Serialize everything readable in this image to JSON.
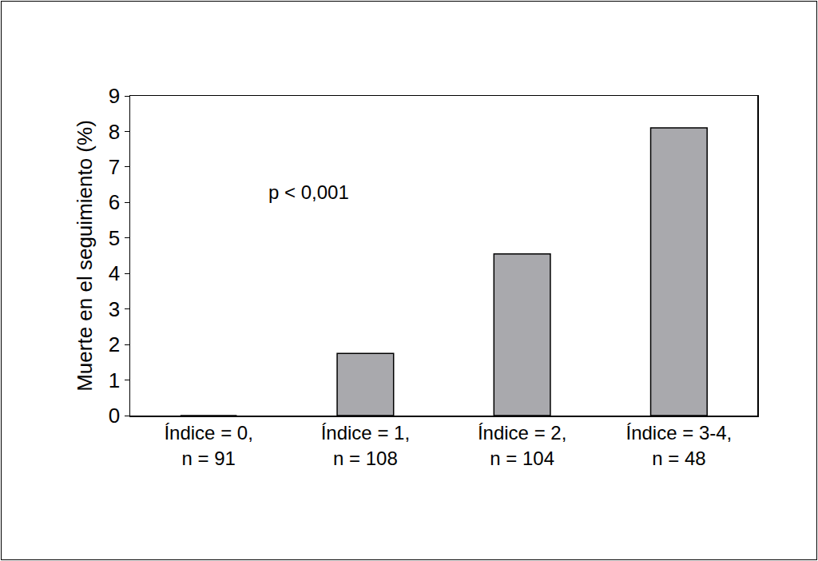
{
  "chart_data": {
    "type": "bar",
    "categories": [
      "Índice = 0,\nn = 91",
      "Índice = 1,\nn = 108",
      "Índice = 2,\nn = 104",
      "Índice = 3-4,\nn = 48"
    ],
    "values": [
      0,
      1.75,
      4.55,
      8.1
    ],
    "color": "#a9a9ad",
    "y_label": "Muerte en el seguimiento (%)",
    "annotations": [
      "p < 0,001"
    ],
    "ylim": [
      0,
      9
    ],
    "yticks": [
      0,
      1,
      2,
      3,
      4,
      5,
      6,
      7,
      8,
      9
    ],
    "grid": false
  }
}
